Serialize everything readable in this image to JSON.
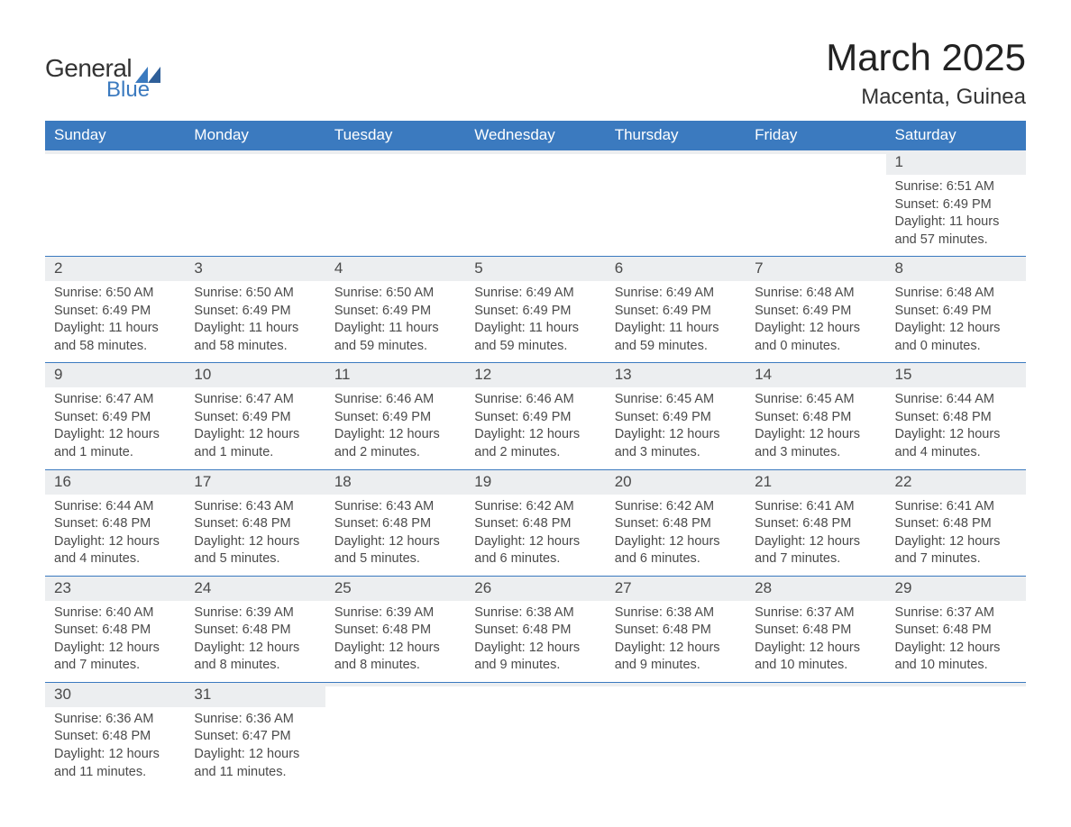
{
  "logo": {
    "text1": "General",
    "text2": "Blue",
    "tri_color": "#3b7abf"
  },
  "header": {
    "month_title": "March 2025",
    "location": "Macenta, Guinea"
  },
  "colors": {
    "header_bg": "#3b7abf",
    "header_text": "#ffffff",
    "daynum_bg": "#eceef0",
    "week_border": "#3b7abf",
    "body_text": "#4a4a4a"
  },
  "weekdays": [
    "Sunday",
    "Monday",
    "Tuesday",
    "Wednesday",
    "Thursday",
    "Friday",
    "Saturday"
  ],
  "weeks": [
    [
      {
        "empty": true
      },
      {
        "empty": true
      },
      {
        "empty": true
      },
      {
        "empty": true
      },
      {
        "empty": true
      },
      {
        "empty": true
      },
      {
        "day": "1",
        "sunrise": "Sunrise: 6:51 AM",
        "sunset": "Sunset: 6:49 PM",
        "daylight": "Daylight: 11 hours and 57 minutes."
      }
    ],
    [
      {
        "day": "2",
        "sunrise": "Sunrise: 6:50 AM",
        "sunset": "Sunset: 6:49 PM",
        "daylight": "Daylight: 11 hours and 58 minutes."
      },
      {
        "day": "3",
        "sunrise": "Sunrise: 6:50 AM",
        "sunset": "Sunset: 6:49 PM",
        "daylight": "Daylight: 11 hours and 58 minutes."
      },
      {
        "day": "4",
        "sunrise": "Sunrise: 6:50 AM",
        "sunset": "Sunset: 6:49 PM",
        "daylight": "Daylight: 11 hours and 59 minutes."
      },
      {
        "day": "5",
        "sunrise": "Sunrise: 6:49 AM",
        "sunset": "Sunset: 6:49 PM",
        "daylight": "Daylight: 11 hours and 59 minutes."
      },
      {
        "day": "6",
        "sunrise": "Sunrise: 6:49 AM",
        "sunset": "Sunset: 6:49 PM",
        "daylight": "Daylight: 11 hours and 59 minutes."
      },
      {
        "day": "7",
        "sunrise": "Sunrise: 6:48 AM",
        "sunset": "Sunset: 6:49 PM",
        "daylight": "Daylight: 12 hours and 0 minutes."
      },
      {
        "day": "8",
        "sunrise": "Sunrise: 6:48 AM",
        "sunset": "Sunset: 6:49 PM",
        "daylight": "Daylight: 12 hours and 0 minutes."
      }
    ],
    [
      {
        "day": "9",
        "sunrise": "Sunrise: 6:47 AM",
        "sunset": "Sunset: 6:49 PM",
        "daylight": "Daylight: 12 hours and 1 minute."
      },
      {
        "day": "10",
        "sunrise": "Sunrise: 6:47 AM",
        "sunset": "Sunset: 6:49 PM",
        "daylight": "Daylight: 12 hours and 1 minute."
      },
      {
        "day": "11",
        "sunrise": "Sunrise: 6:46 AM",
        "sunset": "Sunset: 6:49 PM",
        "daylight": "Daylight: 12 hours and 2 minutes."
      },
      {
        "day": "12",
        "sunrise": "Sunrise: 6:46 AM",
        "sunset": "Sunset: 6:49 PM",
        "daylight": "Daylight: 12 hours and 2 minutes."
      },
      {
        "day": "13",
        "sunrise": "Sunrise: 6:45 AM",
        "sunset": "Sunset: 6:49 PM",
        "daylight": "Daylight: 12 hours and 3 minutes."
      },
      {
        "day": "14",
        "sunrise": "Sunrise: 6:45 AM",
        "sunset": "Sunset: 6:48 PM",
        "daylight": "Daylight: 12 hours and 3 minutes."
      },
      {
        "day": "15",
        "sunrise": "Sunrise: 6:44 AM",
        "sunset": "Sunset: 6:48 PM",
        "daylight": "Daylight: 12 hours and 4 minutes."
      }
    ],
    [
      {
        "day": "16",
        "sunrise": "Sunrise: 6:44 AM",
        "sunset": "Sunset: 6:48 PM",
        "daylight": "Daylight: 12 hours and 4 minutes."
      },
      {
        "day": "17",
        "sunrise": "Sunrise: 6:43 AM",
        "sunset": "Sunset: 6:48 PM",
        "daylight": "Daylight: 12 hours and 5 minutes."
      },
      {
        "day": "18",
        "sunrise": "Sunrise: 6:43 AM",
        "sunset": "Sunset: 6:48 PM",
        "daylight": "Daylight: 12 hours and 5 minutes."
      },
      {
        "day": "19",
        "sunrise": "Sunrise: 6:42 AM",
        "sunset": "Sunset: 6:48 PM",
        "daylight": "Daylight: 12 hours and 6 minutes."
      },
      {
        "day": "20",
        "sunrise": "Sunrise: 6:42 AM",
        "sunset": "Sunset: 6:48 PM",
        "daylight": "Daylight: 12 hours and 6 minutes."
      },
      {
        "day": "21",
        "sunrise": "Sunrise: 6:41 AM",
        "sunset": "Sunset: 6:48 PM",
        "daylight": "Daylight: 12 hours and 7 minutes."
      },
      {
        "day": "22",
        "sunrise": "Sunrise: 6:41 AM",
        "sunset": "Sunset: 6:48 PM",
        "daylight": "Daylight: 12 hours and 7 minutes."
      }
    ],
    [
      {
        "day": "23",
        "sunrise": "Sunrise: 6:40 AM",
        "sunset": "Sunset: 6:48 PM",
        "daylight": "Daylight: 12 hours and 7 minutes."
      },
      {
        "day": "24",
        "sunrise": "Sunrise: 6:39 AM",
        "sunset": "Sunset: 6:48 PM",
        "daylight": "Daylight: 12 hours and 8 minutes."
      },
      {
        "day": "25",
        "sunrise": "Sunrise: 6:39 AM",
        "sunset": "Sunset: 6:48 PM",
        "daylight": "Daylight: 12 hours and 8 minutes."
      },
      {
        "day": "26",
        "sunrise": "Sunrise: 6:38 AM",
        "sunset": "Sunset: 6:48 PM",
        "daylight": "Daylight: 12 hours and 9 minutes."
      },
      {
        "day": "27",
        "sunrise": "Sunrise: 6:38 AM",
        "sunset": "Sunset: 6:48 PM",
        "daylight": "Daylight: 12 hours and 9 minutes."
      },
      {
        "day": "28",
        "sunrise": "Sunrise: 6:37 AM",
        "sunset": "Sunset: 6:48 PM",
        "daylight": "Daylight: 12 hours and 10 minutes."
      },
      {
        "day": "29",
        "sunrise": "Sunrise: 6:37 AM",
        "sunset": "Sunset: 6:48 PM",
        "daylight": "Daylight: 12 hours and 10 minutes."
      }
    ],
    [
      {
        "day": "30",
        "sunrise": "Sunrise: 6:36 AM",
        "sunset": "Sunset: 6:48 PM",
        "daylight": "Daylight: 12 hours and 11 minutes."
      },
      {
        "day": "31",
        "sunrise": "Sunrise: 6:36 AM",
        "sunset": "Sunset: 6:47 PM",
        "daylight": "Daylight: 12 hours and 11 minutes."
      },
      {
        "empty": true
      },
      {
        "empty": true
      },
      {
        "empty": true
      },
      {
        "empty": true
      },
      {
        "empty": true
      }
    ]
  ]
}
